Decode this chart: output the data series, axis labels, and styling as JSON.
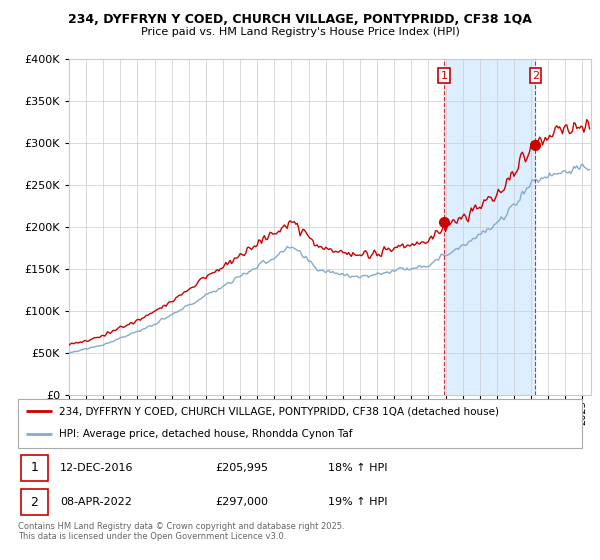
{
  "title1": "234, DYFFRYN Y COED, CHURCH VILLAGE, PONTYPRIDD, CF38 1QA",
  "title2": "Price paid vs. HM Land Registry's House Price Index (HPI)",
  "legend_label1": "234, DYFFRYN Y COED, CHURCH VILLAGE, PONTYPRIDD, CF38 1QA (detached house)",
  "legend_label2": "HPI: Average price, detached house, Rhondda Cynon Taf",
  "point1_date": "12-DEC-2016",
  "point1_price": 205995,
  "point1_label": "18% ↑ HPI",
  "point2_date": "08-APR-2022",
  "point2_price": 297000,
  "point2_label": "19% ↑ HPI",
  "sale_color": "#cc0000",
  "hpi_color": "#88aacc",
  "vline_color": "#cc0000",
  "shade_color": "#ddeeff",
  "point1_x_year": 2016.917,
  "point2_x_year": 2022.25,
  "ylim": [
    0,
    400000
  ],
  "xlim_start": 1995.0,
  "xlim_end": 2025.5,
  "copyright_text": "Contains HM Land Registry data © Crown copyright and database right 2025.\nThis data is licensed under the Open Government Licence v3.0.",
  "background_color": "#ffffff",
  "grid_color": "#cccccc",
  "shade_start": 2016.917,
  "shade_end": 2022.25
}
